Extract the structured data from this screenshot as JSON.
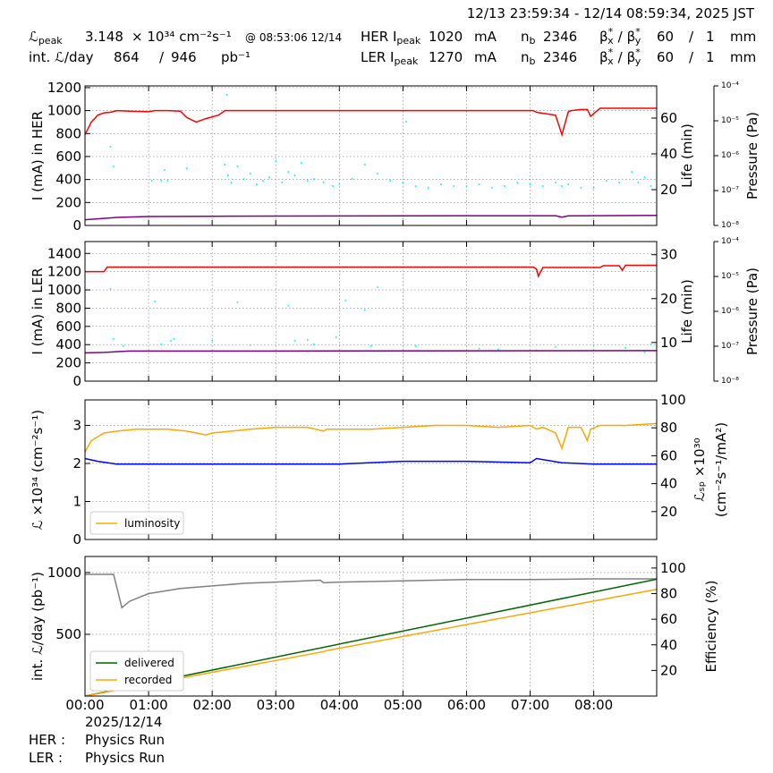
{
  "header": {
    "time_range": "12/13 23:59:34 - 12/14 08:59:34, 2025 JST",
    "lpeak_symbol": "ℒ",
    "lpeak_sub": "peak",
    "lpeak_value": 3.148,
    "lpeak_unit": "× 10³⁴ cm⁻²s⁻¹",
    "lpeak_time": "@ 08:53:06 12/14",
    "intl_label": "int. ℒ/day",
    "intl_recorded": 864,
    "slash": "/",
    "intl_delivered": 946,
    "intl_unit": "pb⁻¹",
    "current_unit": "mA",
    "nb_label": "n",
    "nb_sub": "b",
    "beta": "β",
    "star": "*",
    "beta_x_sub": "x",
    "beta_y_sub": "y",
    "beta_unit": "mm",
    "rows": [
      {
        "ring": "HER I",
        "sub": "peak",
        "current": 1020,
        "nb": 2346,
        "beta_x": 60,
        "beta_y": 1
      },
      {
        "ring": "LER I",
        "sub": "peak",
        "current": 1270,
        "nb": 2346,
        "beta_x": 60,
        "beta_y": 1
      }
    ]
  },
  "chart_data": [
    {
      "type": "line",
      "ylabel": "I (mA) in HER",
      "y2label": "Life (min)",
      "y3label": "Pressure (Pa)",
      "grid": true,
      "xlim": [
        0,
        8.99
      ],
      "xticks": [
        0,
        1,
        2,
        3,
        4,
        5,
        6,
        7,
        8
      ],
      "ylim": [
        0,
        1215
      ],
      "yticks": [
        0,
        200,
        400,
        600,
        800,
        1000,
        1200
      ],
      "y2lim": [
        0,
        78
      ],
      "y2ticks": [
        20,
        40,
        60
      ],
      "y3log": true,
      "y3lim": [
        1e-08,
        0.0001
      ],
      "y3ticks": [
        {
          "value": 1e-08,
          "label": "10⁻⁸"
        },
        {
          "value": 1e-07,
          "label": "10⁻⁷"
        },
        {
          "value": 1e-06,
          "label": "10⁻⁶"
        },
        {
          "value": 1e-05,
          "label": "10⁻⁵"
        },
        {
          "value": 0.0001,
          "label": "10⁻⁴"
        }
      ],
      "series": [
        {
          "color": "#00ffff",
          "style": "dots",
          "axis": "y2",
          "x": [
            0.4,
            0.45,
            1.05,
            1.2,
            1.25,
            1.3,
            1.6,
            2.2,
            2.25,
            2.3,
            2.4,
            2.5,
            2.6,
            2.7,
            2.8,
            2.9,
            3.0,
            3.1,
            3.2,
            3.3,
            3.4,
            3.5,
            3.6,
            3.75,
            3.9,
            4.0,
            4.2,
            4.4,
            4.6,
            4.8,
            5.0,
            5.2,
            5.4,
            5.6,
            5.8,
            6.0,
            6.2,
            6.4,
            6.6,
            6.8,
            7.0,
            7.2,
            7.4,
            7.5,
            7.6,
            7.8,
            8.0,
            8.2,
            8.4,
            8.6,
            8.7,
            8.8,
            8.9,
            2.23,
            5.05
          ],
          "values": [
            44,
            33,
            25,
            25,
            31,
            25,
            32,
            34,
            28,
            24,
            33,
            26,
            29,
            23,
            25,
            27,
            36,
            24,
            30,
            28,
            35,
            25,
            26,
            24,
            22,
            23,
            26,
            34,
            29,
            25,
            24,
            22,
            21,
            23,
            22,
            22,
            23,
            21,
            22,
            24,
            23,
            22,
            24,
            22,
            23,
            21,
            21,
            25,
            24,
            30,
            24,
            27,
            22,
            73,
            58
          ]
        },
        {
          "color": "#ff0000",
          "style": "line",
          "axis": "y",
          "x": [
            0,
            0.1,
            0.2,
            0.3,
            0.4,
            0.5,
            0.7,
            1.0,
            1.1,
            1.3,
            1.5,
            1.6,
            1.75,
            1.9,
            2.1,
            2.2,
            3,
            4,
            5,
            6,
            7.05,
            7.1,
            7.4,
            7.5,
            7.6,
            7.65,
            7.8,
            7.9,
            7.95,
            8.1,
            8.3,
            8.99
          ],
          "values": [
            790,
            900,
            960,
            980,
            985,
            1000,
            995,
            990,
            1000,
            1000,
            995,
            940,
            900,
            930,
            960,
            1000,
            1000,
            1000,
            1000,
            1000,
            1000,
            985,
            960,
            790,
            990,
            1000,
            1010,
            1010,
            950,
            1020,
            1020,
            1020
          ]
        },
        {
          "color": "#800080",
          "style": "line",
          "axis": "y",
          "x": [
            0,
            0.5,
            1,
            2,
            3,
            5,
            7.4,
            7.5,
            7.6,
            8.99
          ],
          "values": [
            50,
            70,
            78,
            80,
            82,
            84,
            85,
            72,
            84,
            88
          ]
        }
      ]
    },
    {
      "type": "line",
      "ylabel": "I (mA) in LER",
      "y2label": "Life (min)",
      "y3label": "Pressure (Pa)",
      "grid": true,
      "xlim": [
        0,
        8.99
      ],
      "xticks": [
        0,
        1,
        2,
        3,
        4,
        5,
        6,
        7,
        8
      ],
      "ylim": [
        0,
        1530
      ],
      "yticks": [
        0,
        200,
        400,
        600,
        800,
        1000,
        1200,
        1400
      ],
      "y2lim": [
        1.2,
        33
      ],
      "y2ticks": [
        10,
        20,
        30
      ],
      "y3log": true,
      "y3lim": [
        1e-08,
        0.0001
      ],
      "y3ticks": [
        {
          "value": 1e-08,
          "label": "10⁻⁸"
        },
        {
          "value": 1e-07,
          "label": "10⁻⁷"
        },
        {
          "value": 1e-06,
          "label": "10⁻⁶"
        },
        {
          "value": 1e-05,
          "label": "10⁻⁵"
        },
        {
          "value": 0.0001,
          "label": "10⁻⁴"
        }
      ],
      "series": [
        {
          "color": "#00ffff",
          "style": "dots",
          "axis": "y2",
          "x": [
            0.4,
            0.45,
            0.6,
            1.1,
            1.2,
            1.35,
            1.4,
            2.0,
            2.4,
            2.6,
            3.2,
            3.3,
            3.5,
            3.6,
            3.95,
            4.1,
            4.4,
            4.5,
            4.6,
            5.2,
            6.2,
            6.5,
            7.1,
            7.4,
            8.0,
            8.5,
            8.7,
            8.8,
            8.9
          ],
          "values": [
            22.2,
            10.8,
            9.2,
            19.4,
            9.6,
            10.4,
            10.8,
            10.4,
            19.2,
            9.4,
            18.4,
            10.4,
            10.6,
            9.6,
            11.2,
            19.6,
            17.4,
            9.2,
            22.6,
            9.2,
            8.6,
            8.4,
            8.2,
            9.0,
            9.4,
            8.8,
            8.2,
            7.8,
            9.6
          ]
        },
        {
          "color": "#ff0000",
          "style": "line",
          "axis": "y",
          "x": [
            0,
            0.3,
            0.35,
            1,
            3,
            5,
            7.05,
            7.1,
            7.13,
            7.2,
            8.1,
            8.15,
            8.4,
            8.45,
            8.5,
            8.99
          ],
          "values": [
            1200,
            1200,
            1250,
            1250,
            1250,
            1250,
            1250,
            1230,
            1150,
            1245,
            1245,
            1265,
            1265,
            1215,
            1270,
            1270
          ]
        },
        {
          "color": "#800080",
          "style": "line",
          "axis": "y",
          "x": [
            0,
            0.3,
            0.7,
            3,
            8.99
          ],
          "values": [
            310,
            315,
            330,
            330,
            335
          ]
        }
      ]
    },
    {
      "type": "line",
      "ylabel": "ℒ ×10³⁴ (cm⁻²s⁻¹)",
      "y2label": [
        "ℒₛₚ ×10³⁰",
        "(cm⁻²s⁻¹/mA²)"
      ],
      "grid": true,
      "legend": "lower left",
      "xlim": [
        0,
        8.99
      ],
      "xticks": [
        0,
        1,
        2,
        3,
        4,
        5,
        6,
        7,
        8
      ],
      "ylim": [
        0,
        3.67
      ],
      "yticks": [
        0,
        1,
        2,
        3
      ],
      "y2lim": [
        0,
        100
      ],
      "y2ticks": [
        20,
        40,
        60,
        80,
        100
      ],
      "series": [
        {
          "color": "#0000ff",
          "style": "line",
          "axis": "y2",
          "x": [
            0,
            0.2,
            0.5,
            1,
            2,
            3,
            4,
            5,
            6,
            7,
            7.1,
            7.5,
            8,
            8.99
          ],
          "values": [
            58,
            56,
            54,
            54,
            54,
            54,
            54,
            56,
            56,
            55,
            58,
            55,
            54,
            54
          ]
        },
        {
          "name": "luminosity",
          "color": "#ffa500",
          "style": "line",
          "axis": "y",
          "x": [
            0,
            0.1,
            0.3,
            0.5,
            0.8,
            1.0,
            1.3,
            1.6,
            1.9,
            2.0,
            2.3,
            2.6,
            3.0,
            3.5,
            3.75,
            3.8,
            4.0,
            4.5,
            5.0,
            5.5,
            6.0,
            6.5,
            7.0,
            7.1,
            7.2,
            7.4,
            7.5,
            7.6,
            7.8,
            7.9,
            7.95,
            8.1,
            8.5,
            8.99
          ],
          "values": [
            2.3,
            2.6,
            2.8,
            2.85,
            2.9,
            2.9,
            2.9,
            2.85,
            2.75,
            2.8,
            2.85,
            2.9,
            2.95,
            2.95,
            2.85,
            2.9,
            2.9,
            2.9,
            2.95,
            3.0,
            3.0,
            2.95,
            3.0,
            2.9,
            2.95,
            2.8,
            2.4,
            2.95,
            2.95,
            2.6,
            2.9,
            3.0,
            3.0,
            3.05
          ]
        }
      ]
    },
    {
      "type": "line",
      "ylabel": "int. ℒ/day (pb⁻¹)",
      "y2label": "Efficiency (%)",
      "grid": true,
      "legend": "lower left",
      "xlim": [
        0,
        8.99
      ],
      "xticks": [
        {
          "value": 0,
          "label": "00:00"
        },
        {
          "value": 1,
          "label": "01:00"
        },
        {
          "value": 2,
          "label": "02:00"
        },
        {
          "value": 3,
          "label": "03:00"
        },
        {
          "value": 4,
          "label": "04:00"
        },
        {
          "value": 5,
          "label": "05:00"
        },
        {
          "value": 6,
          "label": "06:00"
        },
        {
          "value": 7,
          "label": "07:00"
        },
        {
          "value": 8,
          "label": "08:00"
        }
      ],
      "ylim": [
        0,
        1130
      ],
      "yticks": [
        500,
        1000
      ],
      "y2lim": [
        0,
        109
      ],
      "y2ticks": [
        20,
        40,
        60,
        80,
        100
      ],
      "series": [
        {
          "color": "#808080",
          "style": "line",
          "axis": "y2",
          "x": [
            0,
            0.45,
            0.5,
            0.58,
            0.7,
            1.0,
            1.5,
            2.0,
            2.5,
            3.0,
            3.7,
            3.75,
            4.0,
            5.0,
            6.0,
            7.0,
            8.0,
            8.99
          ],
          "values": [
            95,
            95,
            85,
            69,
            74,
            80,
            84,
            86,
            88,
            89,
            90.5,
            88.5,
            89,
            90,
            91,
            91,
            91.5,
            91.5
          ]
        },
        {
          "name": "delivered",
          "color": "#006400",
          "style": "line",
          "axis": "y",
          "x": [
            0,
            8.99
          ],
          "values": [
            0,
            946
          ]
        },
        {
          "name": "recorded",
          "color": "#ffa500",
          "style": "line",
          "axis": "y",
          "x": [
            0,
            3.75,
            3.8,
            8.99
          ],
          "values": [
            0,
            360,
            368,
            864
          ]
        }
      ]
    }
  ],
  "footer": {
    "date": "2025/12/14",
    "runs": [
      {
        "ring": "HER :",
        "mode": "Physics Run"
      },
      {
        "ring": "LER :",
        "mode": "Physics Run"
      }
    ]
  }
}
